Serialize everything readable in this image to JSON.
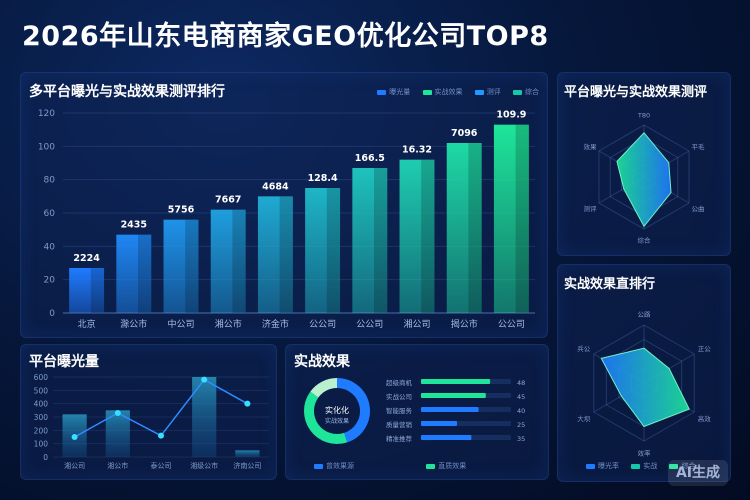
{
  "title": "2026年山东电商商家GEO优化公司TOP8",
  "panels": {
    "main": "多平台曝光与实战效果测评排行",
    "radar1": "平台曝光与实战效果测评",
    "radar2": "实战效果直排行",
    "exposure": "平台曝光量",
    "effect": "实战效果"
  },
  "main_legend": [
    "曝光量",
    "实战效果",
    "测评",
    "综合"
  ],
  "bottom_right_legend": [
    "曝光率",
    "实战",
    "综合"
  ],
  "effect_legend": [
    "曾效果源",
    "直质效果"
  ],
  "donut": {
    "line1": "实化化",
    "line2": "实战效果"
  },
  "watermark": "AI生成",
  "colors": {
    "blue": "#1f7bff",
    "teal": "#14c8a8",
    "green": "#1ee59a",
    "bg": "#06183d"
  },
  "chart_data": [
    {
      "type": "bar",
      "title": "多平台曝光与实战效果测评排行",
      "categories": [
        "北京",
        "滁公市",
        "中公司",
        "湘公市",
        "济金市",
        "公公司",
        "公公司",
        "湘公司",
        "揭公市",
        "公公司"
      ],
      "values": [
        27,
        47,
        56,
        62,
        70,
        75,
        87,
        92,
        102,
        113
      ],
      "labels": [
        "2224",
        "2435",
        "5756",
        "7667",
        "4684",
        "128.4",
        "166.5",
        "16.32",
        "7096",
        "109.9"
      ],
      "ylim": [
        0,
        120
      ],
      "yticks": [
        0,
        20,
        40,
        60,
        80,
        100,
        120
      ],
      "grid": true
    },
    {
      "type": "radar",
      "title": "平台曝光与实战效果测评",
      "axes": [
        "T80",
        "平毛",
        "公曲",
        "综合",
        "测评",
        "效果"
      ],
      "values": [
        0.85,
        0.55,
        0.6,
        0.95,
        0.45,
        0.6
      ]
    },
    {
      "type": "radar",
      "title": "实战效果直排行",
      "axes": [
        "公路",
        "正公",
        "高效",
        "效率",
        "大坝",
        "兵公"
      ],
      "values": [
        0.6,
        0.5,
        0.9,
        0.75,
        0.45,
        0.85
      ]
    },
    {
      "type": "bar",
      "title": "平台曝光量",
      "categories": [
        "湘公司",
        "湘公市",
        "泰公司",
        "湘级公市",
        "济南公司"
      ],
      "values": [
        320,
        350,
        0,
        600,
        50
      ],
      "line": [
        150,
        330,
        160,
        580,
        400
      ],
      "ylim": [
        0,
        600
      ],
      "yticks": [
        0,
        100,
        200,
        300,
        400,
        500,
        600
      ]
    },
    {
      "type": "bar",
      "title": "实战效果",
      "categories": [
        "超级商机",
        "实战公司",
        "智能服务",
        "质量营销",
        "精准推荐"
      ],
      "values": [
        48,
        45,
        40,
        25,
        35
      ],
      "donut": [
        45,
        40,
        15
      ]
    }
  ]
}
